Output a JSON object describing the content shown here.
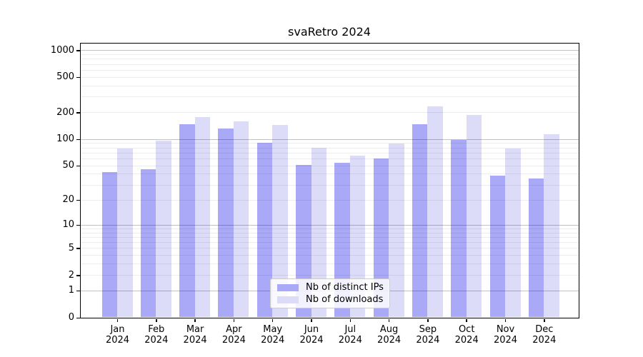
{
  "figure": {
    "title": "svaRetro 2024"
  },
  "chart_data": {
    "type": "bar",
    "title": "svaRetro 2024",
    "categories": [
      "Jan",
      "Feb",
      "Mar",
      "Apr",
      "May",
      "Jun",
      "Jul",
      "Aug",
      "Sep",
      "Oct",
      "Nov",
      "Dec"
    ],
    "x_tick_year": "2024",
    "series": [
      {
        "name": "Nb of distinct IPs",
        "color": "#a9a9f7",
        "values": [
          42,
          45,
          148,
          132,
          90,
          51,
          53,
          60,
          146,
          98,
          38,
          35
        ]
      },
      {
        "name": "Nb of downloads",
        "color": "#dcdcf8",
        "values": [
          78,
          95,
          176,
          159,
          145,
          80,
          65,
          88,
          235,
          185,
          78,
          112
        ]
      }
    ],
    "yscale": "log10(1+y)",
    "ylim": [
      0,
      1200
    ],
    "yticks": [
      1000,
      500,
      200,
      100,
      50,
      20,
      10,
      5,
      2,
      1,
      0
    ],
    "grid": "both",
    "grid_on_top_of_bars": true,
    "legend_position": "lower-center",
    "xlabel": "",
    "ylabel": ""
  }
}
